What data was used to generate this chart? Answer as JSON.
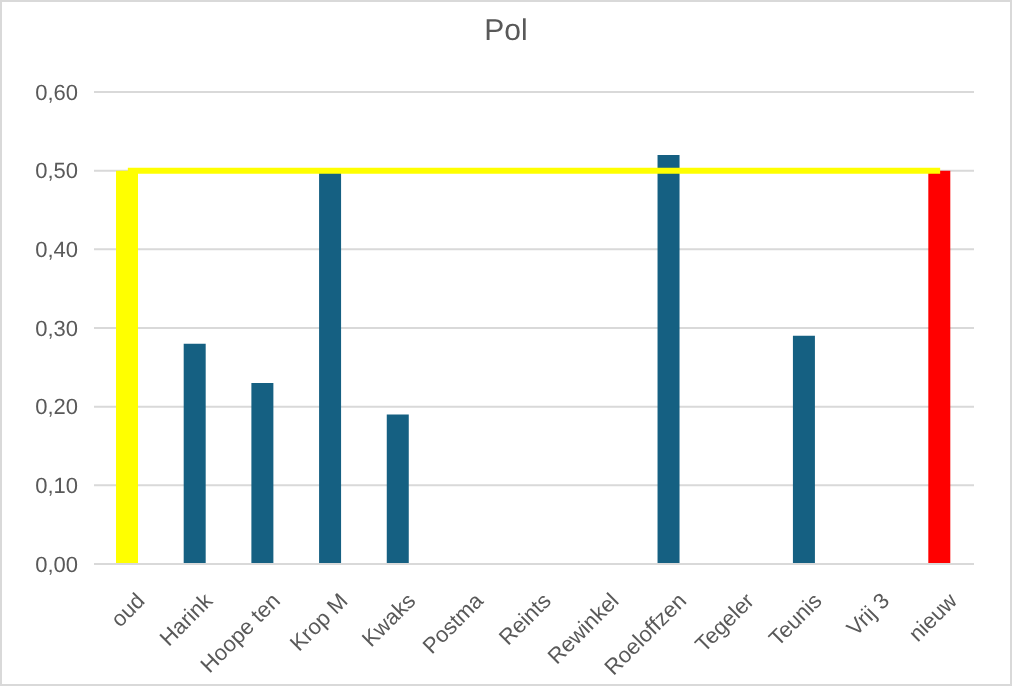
{
  "chart_data": {
    "type": "bar",
    "title": "Pol",
    "categories": [
      "oud",
      "Harink",
      "Hoope ten",
      "Krop M",
      "Kwaks",
      "Postma",
      "Reints",
      "Rewinkel",
      "Roeloffzen",
      "Tegeler",
      "Teunis",
      "Vrij 3",
      "nieuw"
    ],
    "values": [
      0.5,
      0.28,
      0.23,
      0.5,
      0.19,
      null,
      null,
      null,
      0.52,
      null,
      0.29,
      null,
      0.5
    ],
    "colors": [
      "#ffff00",
      "#156082",
      "#156082",
      "#156082",
      "#156082",
      "#156082",
      "#156082",
      "#156082",
      "#156082",
      "#156082",
      "#156082",
      "#156082",
      "#ff0000"
    ],
    "ylim": [
      0,
      0.6
    ],
    "yticks": [
      {
        "value": 0,
        "label": "0,00"
      },
      {
        "value": 0.1,
        "label": "0,10"
      },
      {
        "value": 0.2,
        "label": "0,20"
      },
      {
        "value": 0.3,
        "label": "0,30"
      },
      {
        "value": 0.4,
        "label": "0,40"
      },
      {
        "value": 0.5,
        "label": "0,50"
      },
      {
        "value": 0.6,
        "label": "0,60"
      }
    ],
    "ref_lines": [
      {
        "axis": "y",
        "value": 0.5,
        "color": "#ffff00"
      }
    ],
    "grid": "y",
    "legend": false
  }
}
